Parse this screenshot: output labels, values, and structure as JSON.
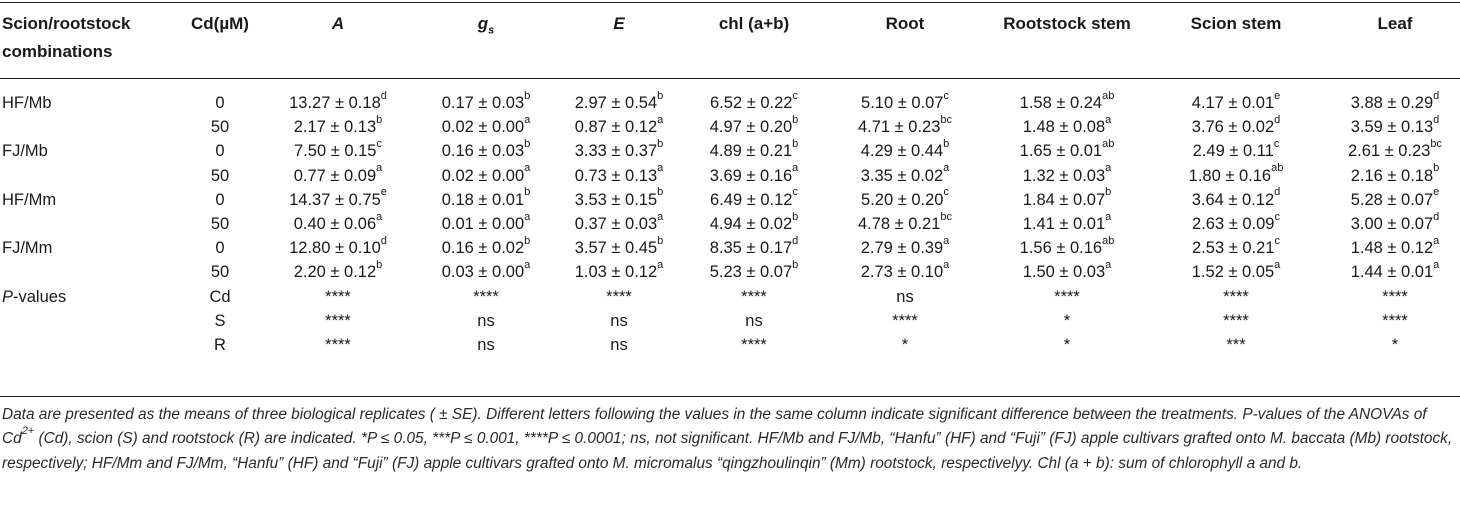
{
  "table": {
    "headers": [
      {
        "key": "combo",
        "line1": "Scion/rootstock",
        "line2": "combinations"
      },
      {
        "key": "cd",
        "text": "Cd(µM)"
      },
      {
        "key": "A",
        "text": "A"
      },
      {
        "key": "gs",
        "text": "g",
        "sub": "s"
      },
      {
        "key": "E",
        "text": "E"
      },
      {
        "key": "chl",
        "text": "chl (a+b)"
      },
      {
        "key": "root",
        "text": "Root"
      },
      {
        "key": "rstem",
        "text": "Rootstock stem"
      },
      {
        "key": "sstem",
        "text": "Scion stem"
      },
      {
        "key": "leaf",
        "text": "Leaf"
      }
    ],
    "rows": [
      {
        "label": "HF/Mb",
        "cd": "0",
        "vals": [
          [
            "13.27 ± 0.18",
            "d"
          ],
          [
            "0.17 ± 0.03",
            "b"
          ],
          [
            "2.97 ± 0.54",
            "b"
          ],
          [
            "6.52 ± 0.22",
            "c"
          ],
          [
            "5.10 ± 0.07",
            "c"
          ],
          [
            "1.58 ± 0.24",
            "ab"
          ],
          [
            "4.17 ± 0.01",
            "e"
          ],
          [
            "3.88 ± 0.29",
            "d"
          ]
        ]
      },
      {
        "label": "",
        "cd": "50",
        "vals": [
          [
            "2.17 ± 0.13",
            "b"
          ],
          [
            "0.02 ± 0.00",
            "a"
          ],
          [
            "0.87 ± 0.12",
            "a"
          ],
          [
            "4.97 ± 0.20",
            "b"
          ],
          [
            "4.71 ± 0.23",
            "bc"
          ],
          [
            "1.48 ± 0.08",
            "a"
          ],
          [
            "3.76 ± 0.02",
            "d"
          ],
          [
            "3.59 ± 0.13",
            "d"
          ]
        ]
      },
      {
        "label": "FJ/Mb",
        "cd": "0",
        "vals": [
          [
            "7.50 ± 0.15",
            "c"
          ],
          [
            "0.16 ± 0.03",
            "b"
          ],
          [
            "3.33 ± 0.37",
            "b"
          ],
          [
            "4.89 ± 0.21",
            "b"
          ],
          [
            "4.29 ± 0.44",
            "b"
          ],
          [
            "1.65 ± 0.01",
            "ab"
          ],
          [
            "2.49 ± 0.11",
            "c"
          ],
          [
            "2.61 ± 0.23",
            "bc"
          ]
        ]
      },
      {
        "label": "",
        "cd": "50",
        "vals": [
          [
            "0.77 ± 0.09",
            "a"
          ],
          [
            "0.02 ± 0.00",
            "a"
          ],
          [
            "0.73 ± 0.13",
            "a"
          ],
          [
            "3.69 ± 0.16",
            "a"
          ],
          [
            "3.35 ± 0.02",
            "a"
          ],
          [
            "1.32 ± 0.03",
            "a"
          ],
          [
            "1.80 ± 0.16",
            "ab"
          ],
          [
            "2.16 ± 0.18",
            "b"
          ]
        ]
      },
      {
        "label": "HF/Mm",
        "cd": "0",
        "vals": [
          [
            "14.37 ± 0.75",
            "e"
          ],
          [
            "0.18 ± 0.01",
            "b"
          ],
          [
            "3.53 ± 0.15",
            "b"
          ],
          [
            "6.49 ± 0.12",
            "c"
          ],
          [
            "5.20 ± 0.20",
            "c"
          ],
          [
            "1.84 ± 0.07",
            "b"
          ],
          [
            "3.64 ± 0.12",
            "d"
          ],
          [
            "5.28 ± 0.07",
            "e"
          ]
        ]
      },
      {
        "label": "",
        "cd": "50",
        "vals": [
          [
            "0.40 ± 0.06",
            "a"
          ],
          [
            "0.01 ± 0.00",
            "a"
          ],
          [
            "0.37 ± 0.03",
            "a"
          ],
          [
            "4.94 ± 0.02",
            "b"
          ],
          [
            "4.78 ± 0.21",
            "bc"
          ],
          [
            "1.41 ± 0.01",
            "a"
          ],
          [
            "2.63 ± 0.09",
            "c"
          ],
          [
            "3.00 ± 0.07",
            "d"
          ]
        ]
      },
      {
        "label": "FJ/Mm",
        "cd": "0",
        "vals": [
          [
            "12.80 ± 0.10",
            "d"
          ],
          [
            "0.16 ± 0.02",
            "b"
          ],
          [
            "3.57 ± 0.45",
            "b"
          ],
          [
            "8.35 ± 0.17",
            "d"
          ],
          [
            "2.79 ± 0.39",
            "a"
          ],
          [
            "1.56 ± 0.16",
            "ab"
          ],
          [
            "2.53 ± 0.21",
            "c"
          ],
          [
            "1.48 ± 0.12",
            "a"
          ]
        ]
      },
      {
        "label": "",
        "cd": "50",
        "vals": [
          [
            "2.20 ± 0.12",
            "b"
          ],
          [
            "0.03 ± 0.00",
            "a"
          ],
          [
            "1.03 ± 0.12",
            "a"
          ],
          [
            "5.23 ± 0.07",
            "b"
          ],
          [
            "2.73 ± 0.10",
            "a"
          ],
          [
            "1.50 ± 0.03",
            "a"
          ],
          [
            "1.52 ± 0.05",
            "a"
          ],
          [
            "1.44 ± 0.01",
            "a"
          ]
        ]
      }
    ],
    "pvalues": {
      "label_italic": "P",
      "label_rest": "-values",
      "rows": [
        {
          "factor": "Cd",
          "vals": [
            "****",
            "****",
            "****",
            "****",
            "ns",
            "****",
            "****",
            "****"
          ]
        },
        {
          "factor": "S",
          "vals": [
            "****",
            "ns",
            "ns",
            "ns",
            "****",
            "*",
            "****",
            "****"
          ]
        },
        {
          "factor": "R",
          "vals": [
            "****",
            "ns",
            "ns",
            "****",
            "*",
            "*",
            "***",
            "*"
          ]
        }
      ]
    }
  },
  "footnote": {
    "part1": "Data are presented as the means of three biological replicates ( ± SE). Different letters following the values in the same column indicate significant difference between the treatments. P-values of the ANOVAs of Cd",
    "sup": "2+",
    "part2": " (Cd), scion (S) and rootstock (R) are indicated. *P ≤ 0.05, ***P ≤ 0.001, ****P ≤ 0.0001; ns, not significant. HF/Mb and FJ/Mb, “Hanfu” (HF) and “Fuji” (FJ) apple cultivars grafted onto M. baccata (Mb) rootstock, respectively; HF/Mm and FJ/Mm, “Hanfu” (HF) and “Fuji” (FJ) apple cultivars grafted onto M. micromalus “qingzhoulinqin” (Mm) rootstock, respectivelyy. Chl (a + b): sum of chlorophyll a and b."
  }
}
